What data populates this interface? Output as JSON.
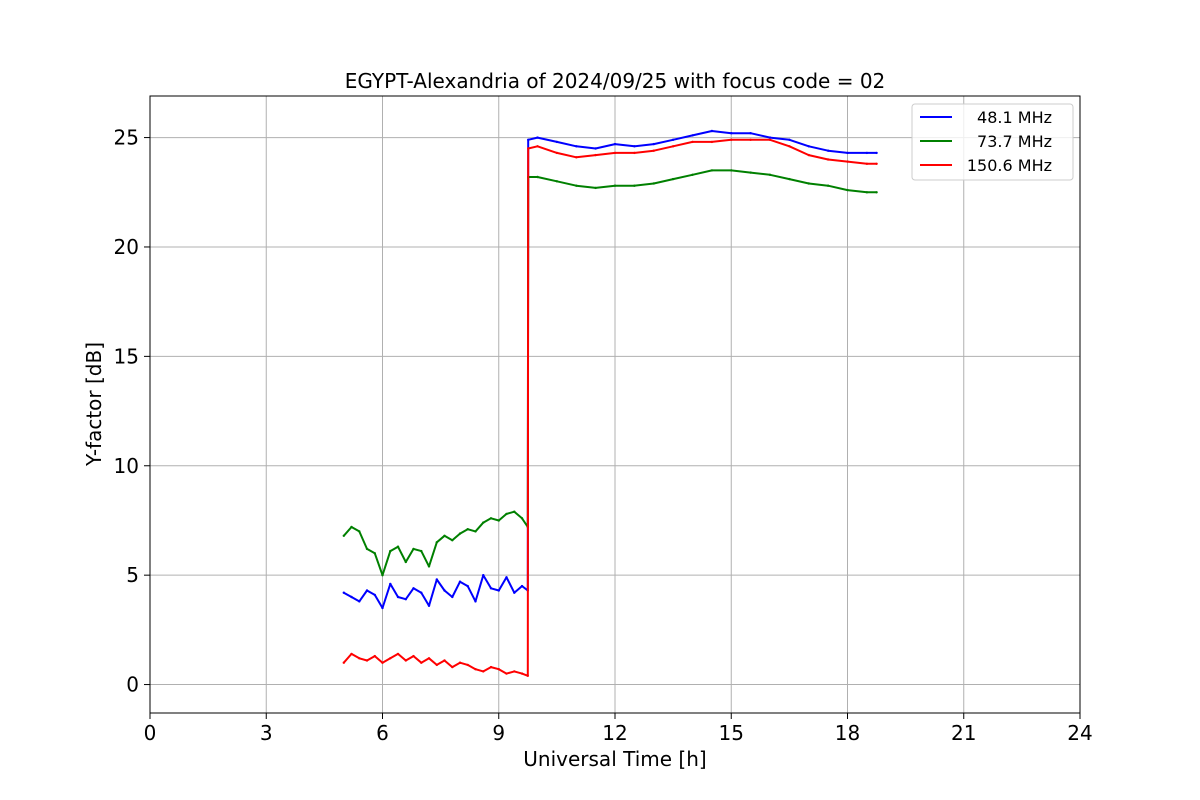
{
  "chart_data": {
    "type": "line",
    "title": "EGYPT-Alexandria of 2024/09/25 with focus code = 02",
    "xlabel": "Universal Time [h]",
    "ylabel": "Y-factor [dB]",
    "xlim": [
      0,
      24
    ],
    "ylim": [
      -1.3,
      26.9
    ],
    "xticks": [
      0,
      3,
      6,
      9,
      12,
      15,
      18,
      21,
      24
    ],
    "yticks": [
      0,
      5,
      10,
      15,
      20,
      25
    ],
    "grid": true,
    "legend_position": "top-right",
    "series": [
      {
        "name": "48.1 MHz",
        "color": "#0000ff",
        "x": [
          5.0,
          5.2,
          5.4,
          5.6,
          5.8,
          6.0,
          6.2,
          6.4,
          6.6,
          6.8,
          7.0,
          7.2,
          7.4,
          7.6,
          7.8,
          8.0,
          8.2,
          8.4,
          8.6,
          8.8,
          9.0,
          9.2,
          9.4,
          9.6,
          9.75,
          9.76,
          10.0,
          10.5,
          11.0,
          11.5,
          12.0,
          12.5,
          13.0,
          13.5,
          14.0,
          14.5,
          15.0,
          15.5,
          16.0,
          16.5,
          17.0,
          17.5,
          18.0,
          18.5,
          18.75
        ],
        "y": [
          4.2,
          4.0,
          3.8,
          4.3,
          4.1,
          3.5,
          4.6,
          4.0,
          3.9,
          4.4,
          4.2,
          3.6,
          4.8,
          4.3,
          4.0,
          4.7,
          4.5,
          3.8,
          5.0,
          4.4,
          4.3,
          4.9,
          4.2,
          4.5,
          4.3,
          24.9,
          25.0,
          24.8,
          24.6,
          24.5,
          24.7,
          24.6,
          24.7,
          24.9,
          25.1,
          25.3,
          25.2,
          25.2,
          25.0,
          24.9,
          24.6,
          24.4,
          24.3,
          24.3,
          24.3
        ]
      },
      {
        "name": "73.7 MHz",
        "color": "#008000",
        "x": [
          5.0,
          5.2,
          5.4,
          5.6,
          5.8,
          6.0,
          6.2,
          6.4,
          6.6,
          6.8,
          7.0,
          7.2,
          7.4,
          7.6,
          7.8,
          8.0,
          8.2,
          8.4,
          8.6,
          8.8,
          9.0,
          9.2,
          9.4,
          9.6,
          9.75,
          9.76,
          10.0,
          10.5,
          11.0,
          11.5,
          12.0,
          12.5,
          13.0,
          13.5,
          14.0,
          14.5,
          15.0,
          15.5,
          16.0,
          16.5,
          17.0,
          17.5,
          18.0,
          18.5,
          18.75
        ],
        "y": [
          6.8,
          7.2,
          7.0,
          6.2,
          6.0,
          5.0,
          6.1,
          6.3,
          5.6,
          6.2,
          6.1,
          5.4,
          6.5,
          6.8,
          6.6,
          6.9,
          7.1,
          7.0,
          7.4,
          7.6,
          7.5,
          7.8,
          7.9,
          7.6,
          7.2,
          23.2,
          23.2,
          23.0,
          22.8,
          22.7,
          22.8,
          22.8,
          22.9,
          23.1,
          23.3,
          23.5,
          23.5,
          23.4,
          23.3,
          23.1,
          22.9,
          22.8,
          22.6,
          22.5,
          22.5
        ]
      },
      {
        "name": "150.6 MHz",
        "color": "#ff0000",
        "x": [
          5.0,
          5.2,
          5.4,
          5.6,
          5.8,
          6.0,
          6.2,
          6.4,
          6.6,
          6.8,
          7.0,
          7.2,
          7.4,
          7.6,
          7.8,
          8.0,
          8.2,
          8.4,
          8.6,
          8.8,
          9.0,
          9.2,
          9.4,
          9.6,
          9.75,
          9.76,
          10.0,
          10.5,
          11.0,
          11.5,
          12.0,
          12.5,
          13.0,
          13.5,
          14.0,
          14.5,
          15.0,
          15.5,
          16.0,
          16.5,
          17.0,
          17.5,
          18.0,
          18.5,
          18.75
        ],
        "y": [
          1.0,
          1.4,
          1.2,
          1.1,
          1.3,
          1.0,
          1.2,
          1.4,
          1.1,
          1.3,
          1.0,
          1.2,
          0.9,
          1.1,
          0.8,
          1.0,
          0.9,
          0.7,
          0.6,
          0.8,
          0.7,
          0.5,
          0.6,
          0.5,
          0.4,
          24.5,
          24.6,
          24.3,
          24.1,
          24.2,
          24.3,
          24.3,
          24.4,
          24.6,
          24.8,
          24.8,
          24.9,
          24.9,
          24.9,
          24.6,
          24.2,
          24.0,
          23.9,
          23.8,
          23.8
        ]
      }
    ]
  }
}
